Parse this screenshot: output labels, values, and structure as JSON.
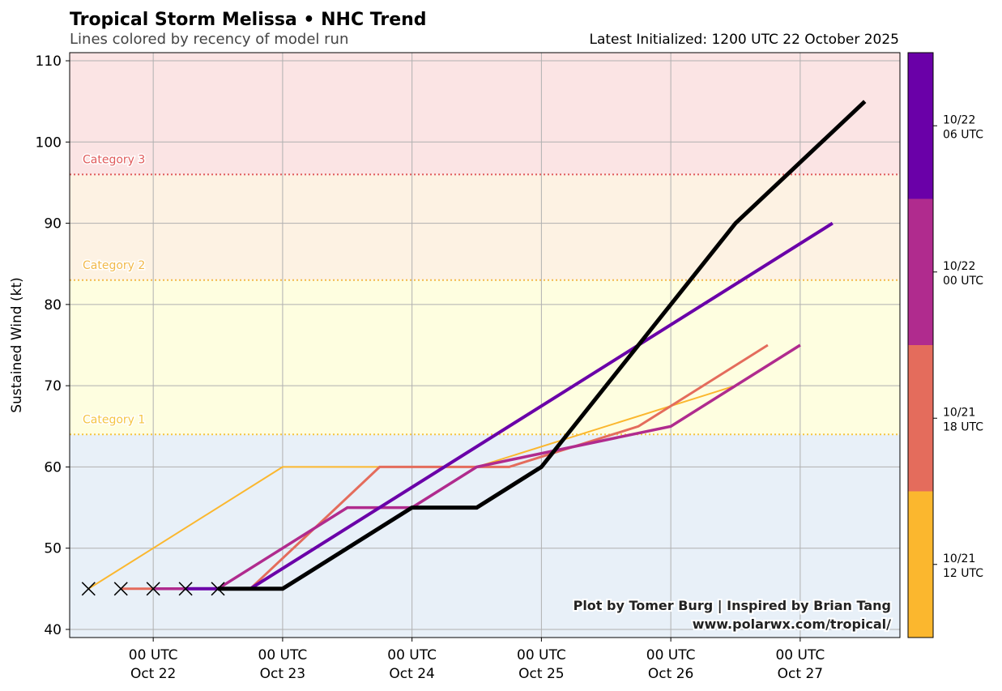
{
  "chart_data": {
    "type": "line",
    "title": "Tropical Storm Melissa • NHC Trend",
    "subtitle": "Lines colored by recency of model run",
    "init_label": "Latest Initialized: 1200 UTC 22 October 2025",
    "ylabel": "Sustained Wind (kt)",
    "xlabel": "",
    "ylim": [
      39,
      111
    ],
    "yticks": [
      40,
      50,
      60,
      70,
      80,
      90,
      100,
      110
    ],
    "xlim_hours": [
      -15.5,
      138.5
    ],
    "xticks": [
      {
        "hours": 0,
        "line1": "00 UTC",
        "line2": "Oct 22"
      },
      {
        "hours": 24,
        "line1": "00 UTC",
        "line2": "Oct 23"
      },
      {
        "hours": 48,
        "line1": "00 UTC",
        "line2": "Oct 24"
      },
      {
        "hours": 72,
        "line1": "00 UTC",
        "line2": "Oct 25"
      },
      {
        "hours": 96,
        "line1": "00 UTC",
        "line2": "Oct 26"
      },
      {
        "hours": 120,
        "line1": "00 UTC",
        "line2": "Oct 27"
      }
    ],
    "categories": [
      {
        "label": "Category 1",
        "kt": 64,
        "color": "#f5c542"
      },
      {
        "label": "Category 2",
        "kt": 83,
        "color": "#f2b94a"
      },
      {
        "label": "Category 3",
        "kt": 96,
        "color": "#e05a5a"
      }
    ],
    "bands": [
      {
        "from": 39,
        "to": 64,
        "color": "#e8f0f8"
      },
      {
        "from": 64,
        "to": 83,
        "color": "#fefee0"
      },
      {
        "from": 83,
        "to": 96,
        "color": "#fdf2e3"
      },
      {
        "from": 96,
        "to": 111,
        "color": "#fbe4e4"
      }
    ],
    "series": [
      {
        "name": "10/21 12 UTC",
        "color": "#fbb72e",
        "width": 2,
        "x": [
          -12,
          0,
          24,
          42,
          60,
          108
        ],
        "y": [
          45,
          50,
          60,
          60,
          60,
          70
        ]
      },
      {
        "name": "10/21 18 UTC",
        "color": "#e46c5c",
        "width": 3,
        "x": [
          -6,
          6,
          18,
          42,
          66,
          90,
          114
        ],
        "y": [
          45,
          45,
          45,
          60,
          60,
          65,
          75
        ]
      },
      {
        "name": "10/22 00 UTC",
        "color": "#b02b8e",
        "width": 3.5,
        "x": [
          0,
          12,
          36,
          48,
          60,
          96,
          120
        ],
        "y": [
          45,
          45,
          55,
          55,
          60,
          65,
          75
        ]
      },
      {
        "name": "10/22 06 UTC",
        "color": "#6a00a8",
        "width": 4,
        "x": [
          6,
          18,
          126
        ],
        "y": [
          45,
          45,
          90
        ]
      },
      {
        "name": "10/22 12 UTC",
        "color": "#000000",
        "width": 5,
        "x": [
          12,
          24,
          48,
          60,
          72,
          96,
          108,
          132
        ],
        "y": [
          45,
          45,
          55,
          55,
          60,
          80,
          90,
          105
        ]
      }
    ],
    "observed_markers": {
      "x": [
        -12,
        -6,
        0,
        6,
        12
      ],
      "y": [
        45,
        45,
        45,
        45,
        45
      ],
      "marker": "x"
    },
    "colorbar": {
      "segments": [
        "#fbb72e",
        "#e46c5c",
        "#b02b8e",
        "#6a00a8"
      ],
      "ticks": [
        {
          "line1": "10/21",
          "line2": "12 UTC"
        },
        {
          "line1": "10/21",
          "line2": "18 UTC"
        },
        {
          "line1": "10/22",
          "line2": "00 UTC"
        },
        {
          "line1": "10/22",
          "line2": "06 UTC"
        }
      ]
    },
    "credits": [
      "Plot by Tomer Burg | Inspired by Brian Tang",
      "www.polarwx.com/tropical/"
    ]
  }
}
